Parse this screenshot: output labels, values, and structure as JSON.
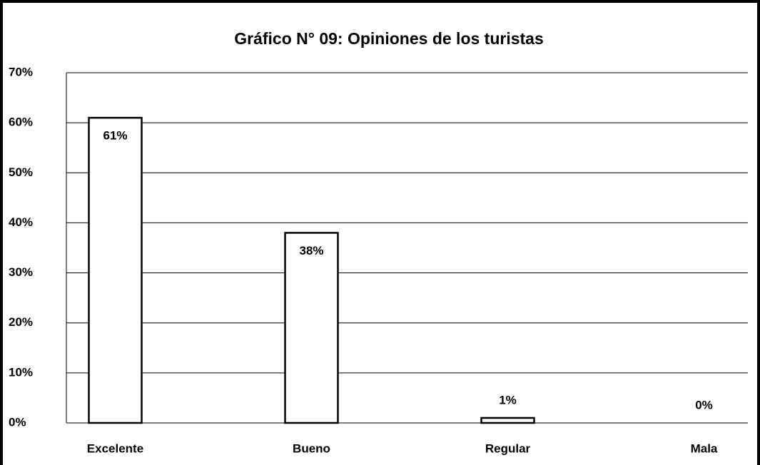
{
  "chart_data": {
    "type": "bar",
    "title": "Gráfico N° 09: Opiniones de los turistas",
    "categories": [
      "Excelente",
      "Bueno",
      "Regular",
      "Mala"
    ],
    "values": [
      61,
      38,
      1,
      0
    ],
    "value_labels": [
      "61%",
      "38%",
      "1%",
      "0%"
    ],
    "color": "#ffffff",
    "ylim": [
      0,
      70
    ],
    "yticks": [
      {
        "value": 0,
        "label": "0%"
      },
      {
        "value": 10,
        "label": "10%"
      },
      {
        "value": 20,
        "label": "20%"
      },
      {
        "value": 30,
        "label": "30%"
      },
      {
        "value": 40,
        "label": "40%"
      },
      {
        "value": 50,
        "label": "50%"
      },
      {
        "value": 60,
        "label": "60%"
      },
      {
        "value": 70,
        "label": "70%"
      }
    ],
    "grid": true
  }
}
